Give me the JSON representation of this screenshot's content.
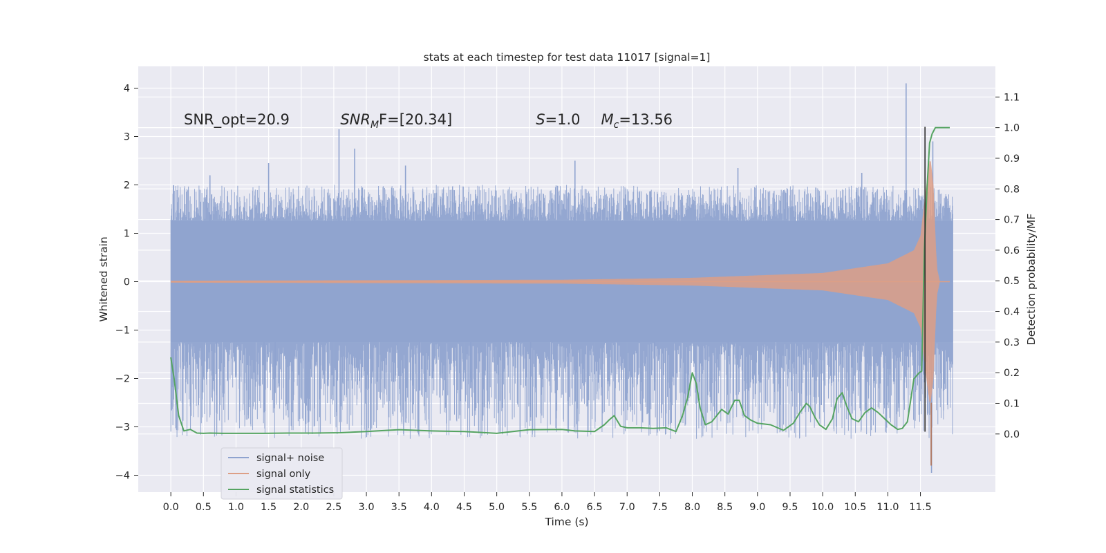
{
  "chart_data": {
    "type": "line",
    "title": "stats at each timestep for test data 11017 [signal=1]",
    "xlabel": "Time (s)",
    "ylabel": "Whitened strain",
    "y2label": "Detection probability/MF",
    "xlim": [
      -0.5,
      12.65
    ],
    "ylim": [
      -4.35,
      4.45
    ],
    "y2lim": [
      -0.19,
      1.2
    ],
    "xticks": [
      0.0,
      0.5,
      1.0,
      1.5,
      2.0,
      2.5,
      3.0,
      3.5,
      4.0,
      4.5,
      5.0,
      5.5,
      6.0,
      6.5,
      7.0,
      7.5,
      8.0,
      8.5,
      9.0,
      9.5,
      10.0,
      10.5,
      11.0,
      11.5
    ],
    "xtick_labels": [
      "0.0",
      "0.5",
      "1.0",
      "1.5",
      "2.0",
      "2.5",
      "3.0",
      "3.5",
      "4.0",
      "4.5",
      "5.0",
      "5.5",
      "6.0",
      "6.5",
      "7.0",
      "7.5",
      "8.0",
      "8.5",
      "9.0",
      "9.5",
      "10.0",
      "10.5",
      "11.0",
      "11.5"
    ],
    "yticks": [
      4,
      3,
      2,
      1,
      0,
      -1,
      -2,
      -3,
      -4
    ],
    "ytick_labels": [
      "4",
      "3",
      "2",
      "1",
      "0",
      "−1",
      "−2",
      "−3",
      "−4"
    ],
    "y2ticks": [
      1.1,
      1.0,
      0.9,
      0.8,
      0.7,
      0.6,
      0.5,
      0.4,
      0.3,
      0.2,
      0.1,
      0.0
    ],
    "y2tick_labels": [
      "1.1",
      "1.0",
      "0.9",
      "0.8",
      "0.7",
      "0.6",
      "0.5",
      "0.4",
      "0.3",
      "0.2",
      "0.1",
      "0.0"
    ],
    "grid": true,
    "legend": "lower-left",
    "annotations": [
      {
        "text": "SNR_opt=20.9",
        "x": 0.2,
        "y": 3.25
      },
      {
        "text": "SNR",
        "sub": "M",
        "rest": "F=[20.34]",
        "x": 2.6,
        "y": 3.25
      },
      {
        "text": "S",
        "rest": "=1.0",
        "x": 5.6,
        "y": 3.25
      },
      {
        "text": "M",
        "sub": "c",
        "rest": "=13.56",
        "x": 6.6,
        "y": 3.25
      }
    ],
    "vline": {
      "x": 11.57,
      "ymin": -3.1,
      "ymax": 3.2,
      "color": "#2b2b2b"
    },
    "series": [
      {
        "name": "signal+ noise",
        "axis": "left",
        "color": "#8fa3cf",
        "x_range": [
          0.0,
          12.0
        ],
        "envelope": {
          "inner": 1.25,
          "outer_pos": 2.0,
          "outer_neg": -2.0
        },
        "peaks": [
          [
            0.6,
            2.2
          ],
          [
            1.5,
            2.45
          ],
          [
            2.58,
            3.15
          ],
          [
            2.82,
            2.75
          ],
          [
            3.6,
            2.4
          ],
          [
            6.2,
            2.5
          ],
          [
            8.7,
            2.35
          ],
          [
            10.6,
            2.25
          ],
          [
            11.28,
            4.1
          ],
          [
            11.69,
            2.9
          ],
          [
            0.7,
            -2.35
          ],
          [
            1.43,
            -2.7
          ],
          [
            1.6,
            -2.3
          ],
          [
            3.82,
            -2.25
          ],
          [
            4.6,
            -2.2
          ],
          [
            5.52,
            -2.8
          ],
          [
            7.42,
            -2.25
          ],
          [
            8.55,
            -2.7
          ],
          [
            9.98,
            -2.55
          ],
          [
            10.3,
            -2.4
          ],
          [
            11.67,
            -3.95
          ]
        ]
      },
      {
        "name": "signal only",
        "axis": "left",
        "color": "#dd9f86",
        "amplitude": [
          [
            0.0,
            0.02
          ],
          [
            6.0,
            0.04
          ],
          [
            8.0,
            0.08
          ],
          [
            10.0,
            0.18
          ],
          [
            11.0,
            0.38
          ],
          [
            11.4,
            0.65
          ],
          [
            11.5,
            0.95
          ],
          [
            11.6,
            2.1
          ],
          [
            11.65,
            2.6
          ],
          [
            11.7,
            2.0
          ],
          [
            11.75,
            0.3
          ],
          [
            11.8,
            0.0
          ]
        ]
      },
      {
        "name": "signal statistics",
        "axis": "right",
        "color": "#55a461",
        "x": [
          0.0,
          0.05,
          0.12,
          0.2,
          0.3,
          0.4,
          0.5,
          0.6,
          0.8,
          1.0,
          1.4,
          1.8,
          2.2,
          2.6,
          3.0,
          3.5,
          4.0,
          4.5,
          5.0,
          5.5,
          6.0,
          6.2,
          6.5,
          6.65,
          6.72,
          6.8,
          6.9,
          7.0,
          7.2,
          7.4,
          7.6,
          7.75,
          7.85,
          7.93,
          8.0,
          8.06,
          8.12,
          8.2,
          8.3,
          8.45,
          8.55,
          8.65,
          8.72,
          8.8,
          8.9,
          9.0,
          9.2,
          9.4,
          9.55,
          9.65,
          9.75,
          9.8,
          9.88,
          9.95,
          10.05,
          10.15,
          10.22,
          10.3,
          10.37,
          10.45,
          10.55,
          10.65,
          10.75,
          10.85,
          10.95,
          11.05,
          11.15,
          11.22,
          11.3,
          11.4,
          11.48,
          11.52,
          11.56,
          11.6,
          11.64,
          11.68,
          11.73,
          11.8,
          11.95
        ],
        "values": [
          0.25,
          0.18,
          0.06,
          0.01,
          0.015,
          0.003,
          0.002,
          0.003,
          0.002,
          0.002,
          0.002,
          0.003,
          0.003,
          0.004,
          0.008,
          0.014,
          0.01,
          0.008,
          0.002,
          0.014,
          0.015,
          0.01,
          0.008,
          0.03,
          0.045,
          0.06,
          0.025,
          0.02,
          0.02,
          0.018,
          0.02,
          0.008,
          0.06,
          0.12,
          0.2,
          0.165,
          0.085,
          0.03,
          0.04,
          0.08,
          0.065,
          0.11,
          0.11,
          0.06,
          0.045,
          0.035,
          0.03,
          0.012,
          0.035,
          0.07,
          0.1,
          0.09,
          0.055,
          0.03,
          0.015,
          0.05,
          0.115,
          0.135,
          0.09,
          0.05,
          0.04,
          0.07,
          0.085,
          0.07,
          0.05,
          0.03,
          0.015,
          0.018,
          0.04,
          0.18,
          0.2,
          0.205,
          0.6,
          0.8,
          0.95,
          0.98,
          1.0,
          1.0,
          1.0
        ]
      }
    ]
  }
}
